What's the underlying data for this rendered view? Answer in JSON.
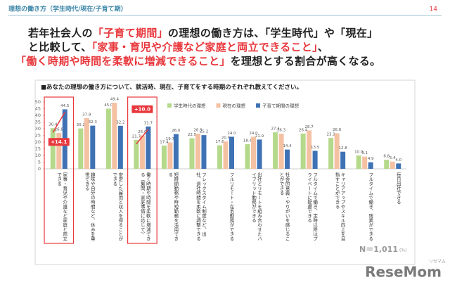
{
  "header": {
    "title": "理想の働き方（学生時代/現在/子育て期）",
    "page": "14"
  },
  "headline": [
    [
      {
        "text": "若年社会人の",
        "color": "#222222"
      },
      {
        "text": "「子育て期間」",
        "color": "#e8383d"
      },
      {
        "text": "の理想の働き方は、「学生時代」や「現在」",
        "color": "#222222"
      }
    ],
    [
      {
        "text": "と比較して、",
        "color": "#222222"
      },
      {
        "text": "「家事・育児や介護など家庭と両立できること」",
        "color": "#e8383d"
      },
      {
        "text": "、",
        "color": "#222222"
      }
    ],
    [
      {
        "text": "「働く時期や時間を柔軟に増減できること」",
        "color": "#e8383d"
      },
      {
        "text": "を理想とする割合が高くなる。",
        "color": "#222222"
      }
    ]
  ],
  "chart_data": {
    "type": "bar",
    "title": "■あなたの理想の働き方について、就活時、現在、子育てをする時期のそれぞれ教えてください。",
    "categories": [
      "家事・育児や介護など家庭と両立できる",
      "趣味や自分の時間など、休みを重視できる",
      "安定した雇用と収入を得ることができる",
      "働く時期や時間を柔軟に増減できる（繁閑・家庭事情に応じて）",
      "短時間勤務や時短勤務を活用できる",
      "フレックスタイム制度など、出社、退社時間を柔軟に調整できる",
      "フルリモート・在宅勤務ができる",
      "出社とリモートを組み合わせたハイブリット勤務ができる",
      "社会的意義・やりがいを感じることができる",
      "フルタイムで働き、定時以降はプライベートに配慮できる",
      "キャリアアップやスキル向上を目指すことができる",
      "フルタイムで働き、残業ができる",
      "毎日出社できる"
    ],
    "series": [
      {
        "name": "学生時代の理想",
        "color": "#b5d98b",
        "values": [
          30.4,
          30.2,
          45.0,
          21.7,
          17.4,
          22.9,
          17.6,
          18.4,
          27.3,
          26.4,
          23.1,
          10.0,
          6.8
        ],
        "value_labels": [
          "30.4",
          "30.2",
          "45.0",
          "21.7",
          "17.4",
          "22.9",
          "17.6",
          "18.4",
          "27.3",
          "26.4",
          "23.1",
          "10.0",
          "6.8"
        ]
      },
      {
        "name": "現在の理想",
        "color": "#f5c1a3",
        "values": [
          26.8,
          37.9,
          49.4,
          25.0,
          19.7,
          26.3,
          20.5,
          24.0,
          26.3,
          28.7,
          26.6,
          9.1,
          5.4
        ],
        "value_labels": [
          "26.8",
          "37.9",
          "49.4",
          "25.0",
          "19.7",
          "26.3",
          "20.5",
          "24.0",
          "26.3",
          "28.7",
          "26.6",
          "9.1",
          "5.4"
        ]
      },
      {
        "name": "子育て期間の理想",
        "color": "#3f72b4",
        "values": [
          44.5,
          32.3,
          32.2,
          31.7,
          26.0,
          25.2,
          24.0,
          21.9,
          14.4,
          13.5,
          12.8,
          4.9,
          4.0
        ],
        "value_labels": [
          "44.5",
          "32.3",
          "32.2",
          "31.7",
          "26.0",
          "25.2",
          "24.0",
          "21.9",
          "14.4",
          "13.5",
          "12.8",
          "4.9",
          "4.0"
        ]
      }
    ],
    "ylim": [
      0,
      50
    ],
    "yticks": [
      0,
      5,
      10,
      15,
      20,
      25,
      30,
      35,
      40,
      45,
      50
    ],
    "annotations": [
      {
        "text": "+14.1",
        "category": 0
      },
      {
        "text": "+10.0",
        "category": 3
      }
    ],
    "sample": "N＝1,011",
    "unit": "(%)"
  },
  "brand": {
    "name": "ReseMom",
    "kana": "リセマム"
  }
}
